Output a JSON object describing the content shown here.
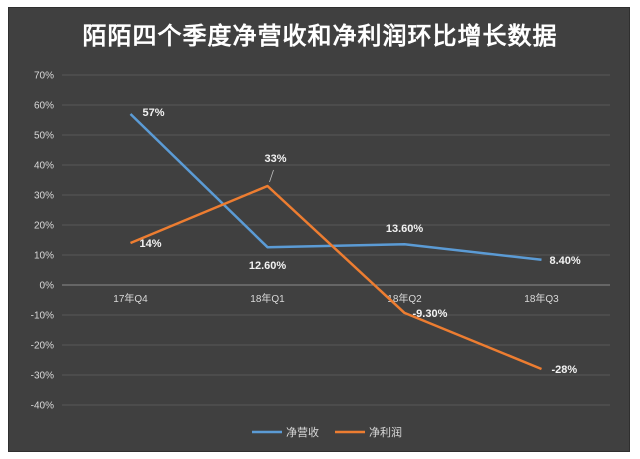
{
  "chart_data": {
    "type": "line",
    "title": "陌陌四个季度净营收和净利润环比增长数据",
    "categories": [
      "17年Q4",
      "18年Q1",
      "18年Q2",
      "18年Q3"
    ],
    "ylim": [
      -40,
      70
    ],
    "ytick_step": 10,
    "ytick_labels": [
      "70%",
      "60%",
      "50%",
      "40%",
      "30%",
      "20%",
      "10%",
      "0%",
      "-10%",
      "-20%",
      "-30%",
      "-40%"
    ],
    "grid": true,
    "legend_position": "bottom",
    "series": [
      {
        "name": "净营收",
        "color": "#5b9bd5",
        "values": [
          57,
          12.6,
          13.6,
          8.4
        ],
        "labels": [
          "57%",
          "12.60%",
          "13.60%",
          "8.40%"
        ]
      },
      {
        "name": "净利润",
        "color": "#ed7d31",
        "values": [
          14,
          33,
          -9.3,
          -28
        ],
        "labels": [
          "14%",
          "33%",
          "-9.30%",
          "-28%"
        ]
      }
    ]
  }
}
